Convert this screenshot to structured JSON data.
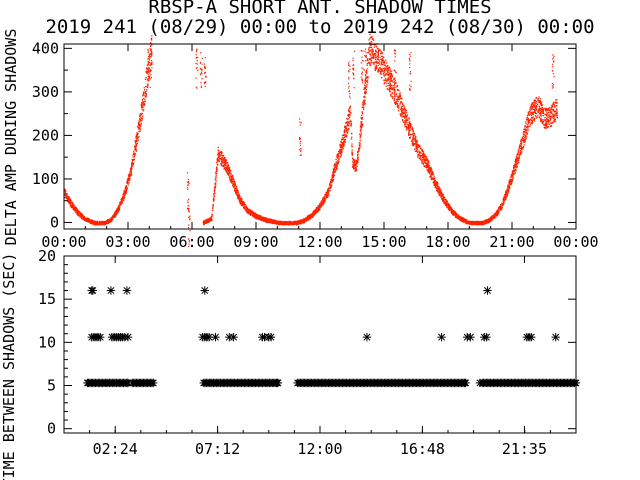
{
  "figure": {
    "title_line1": "RBSP-A SHORT ANT. SHADOW TIMES",
    "title_line2": "2019 241 (08/29) 00:00 to 2019 242 (08/30) 00:00"
  },
  "colors": {
    "series": "#ff2200",
    "axes": "#000000",
    "background": "#ffffff"
  },
  "chart_data": [
    {
      "type": "scatter",
      "ylabel": "DELTA AMP DURING SHADOWS",
      "ylim": [
        -15,
        410
      ],
      "xlim": [
        0,
        24
      ],
      "x_unit": "hours UT",
      "xticks": [
        0,
        3,
        6,
        9,
        12,
        15,
        18,
        21,
        24
      ],
      "xtick_labels": [
        "00:00",
        "03:00",
        "06:00",
        "09:00",
        "12:00",
        "15:00",
        "18:00",
        "21:00",
        "00:00"
      ],
      "yticks": [
        0,
        100,
        200,
        300,
        400
      ],
      "ytick_labels": [
        "0",
        "100",
        "200",
        "300",
        "400"
      ],
      "marker": "dot",
      "color": "#ff2200",
      "trend": [
        [
          0.0,
          70
        ],
        [
          0.3,
          45
        ],
        [
          0.6,
          25
        ],
        [
          0.9,
          12
        ],
        [
          1.2,
          4
        ],
        [
          1.45,
          0
        ],
        [
          1.9,
          0
        ],
        [
          2.2,
          8
        ],
        [
          2.5,
          30
        ],
        [
          2.8,
          65
        ],
        [
          3.1,
          115
        ],
        [
          3.4,
          195
        ],
        [
          3.7,
          280
        ],
        [
          3.95,
          360
        ],
        [
          4.1,
          400
        ],
        [
          6.5,
          0
        ],
        [
          6.9,
          10
        ],
        [
          7.2,
          160
        ],
        [
          7.6,
          130
        ],
        [
          7.9,
          95
        ],
        [
          8.2,
          55
        ],
        [
          8.6,
          28
        ],
        [
          9.0,
          15
        ],
        [
          9.5,
          6
        ],
        [
          10.1,
          0
        ],
        [
          10.9,
          0
        ],
        [
          11.2,
          5
        ],
        [
          11.6,
          18
        ],
        [
          12.0,
          40
        ],
        [
          12.4,
          75
        ],
        [
          12.7,
          130
        ],
        [
          13.1,
          195
        ],
        [
          13.4,
          255
        ],
        [
          13.5,
          140
        ],
        [
          13.7,
          130
        ],
        [
          14.3,
          400
        ],
        [
          14.8,
          370
        ],
        [
          15.2,
          330
        ],
        [
          15.6,
          290
        ],
        [
          16.0,
          240
        ],
        [
          16.3,
          200
        ],
        [
          16.6,
          165
        ],
        [
          17.0,
          135
        ],
        [
          17.3,
          100
        ],
        [
          17.6,
          70
        ],
        [
          17.9,
          45
        ],
        [
          18.2,
          25
        ],
        [
          18.5,
          12
        ],
        [
          18.8,
          4
        ],
        [
          19.0,
          0
        ],
        [
          19.6,
          0
        ],
        [
          19.9,
          6
        ],
        [
          20.2,
          18
        ],
        [
          20.5,
          40
        ],
        [
          20.8,
          80
        ],
        [
          21.1,
          125
        ],
        [
          21.4,
          175
        ],
        [
          21.8,
          245
        ],
        [
          22.2,
          270
        ],
        [
          22.5,
          240
        ],
        [
          22.8,
          245
        ],
        [
          23.1,
          265
        ]
      ],
      "spikes": [
        [
          3.95,
          400
        ],
        [
          4.05,
          400
        ],
        [
          6.2,
          400
        ],
        [
          6.4,
          395
        ],
        [
          6.6,
          390
        ],
        [
          13.35,
          370
        ],
        [
          13.55,
          400
        ],
        [
          13.95,
          400
        ],
        [
          14.1,
          400
        ],
        [
          15.5,
          400
        ],
        [
          16.2,
          395
        ],
        [
          22.9,
          400
        ],
        [
          5.8,
          120
        ],
        [
          5.85,
          35
        ],
        [
          11.05,
          240
        ]
      ]
    },
    {
      "type": "scatter",
      "ylabel": "TIME BETWEEN SHADOWS (SEC)",
      "ylim": [
        -0.5,
        20
      ],
      "xlim": [
        0,
        24
      ],
      "xticks": [
        2.4,
        7.2,
        12.0,
        16.8,
        21.583
      ],
      "xtick_labels": [
        "02:24",
        "07:12",
        "12:00",
        "16:48",
        "21:35"
      ],
      "yticks": [
        0,
        5,
        10,
        15,
        20
      ],
      "ytick_labels": [
        "0",
        "5",
        "10",
        "15",
        "20"
      ],
      "marker": "asterisk",
      "baseline_value": 5.3,
      "baseline_ranges": [
        [
          1.15,
          3.0
        ],
        [
          3.2,
          4.25
        ],
        [
          6.55,
          10.05
        ],
        [
          10.95,
          18.85
        ],
        [
          19.6,
          24.0
        ]
      ],
      "points": [
        [
          1.3,
          16.0
        ],
        [
          1.35,
          16.0
        ],
        [
          2.2,
          16.0
        ],
        [
          2.95,
          16.0
        ],
        [
          6.6,
          16.0
        ],
        [
          19.85,
          16.0
        ],
        [
          1.3,
          10.6
        ],
        [
          1.4,
          10.6
        ],
        [
          1.5,
          10.6
        ],
        [
          1.6,
          10.6
        ],
        [
          1.7,
          10.6
        ],
        [
          2.25,
          10.6
        ],
        [
          2.35,
          10.6
        ],
        [
          2.45,
          10.6
        ],
        [
          2.55,
          10.6
        ],
        [
          2.65,
          10.6
        ],
        [
          2.75,
          10.6
        ],
        [
          2.85,
          10.6
        ],
        [
          3.0,
          10.6
        ],
        [
          6.5,
          10.6
        ],
        [
          6.6,
          10.6
        ],
        [
          6.7,
          10.6
        ],
        [
          6.8,
          10.6
        ],
        [
          7.1,
          10.6
        ],
        [
          7.75,
          10.6
        ],
        [
          7.95,
          10.6
        ],
        [
          9.3,
          10.6
        ],
        [
          9.4,
          10.6
        ],
        [
          9.6,
          10.6
        ],
        [
          9.7,
          10.6
        ],
        [
          14.2,
          10.6
        ],
        [
          17.7,
          10.6
        ],
        [
          18.9,
          10.6
        ],
        [
          19.05,
          10.6
        ],
        [
          19.7,
          10.6
        ],
        [
          19.8,
          10.6
        ],
        [
          21.7,
          10.6
        ],
        [
          21.8,
          10.6
        ],
        [
          21.9,
          10.6
        ],
        [
          23.05,
          10.6
        ],
        [
          19.5,
          5.3
        ],
        [
          3.0,
          5.3
        ],
        [
          10.0,
          5.3
        ],
        [
          18.8,
          5.3
        ],
        [
          1.1,
          5.3
        ]
      ]
    }
  ]
}
